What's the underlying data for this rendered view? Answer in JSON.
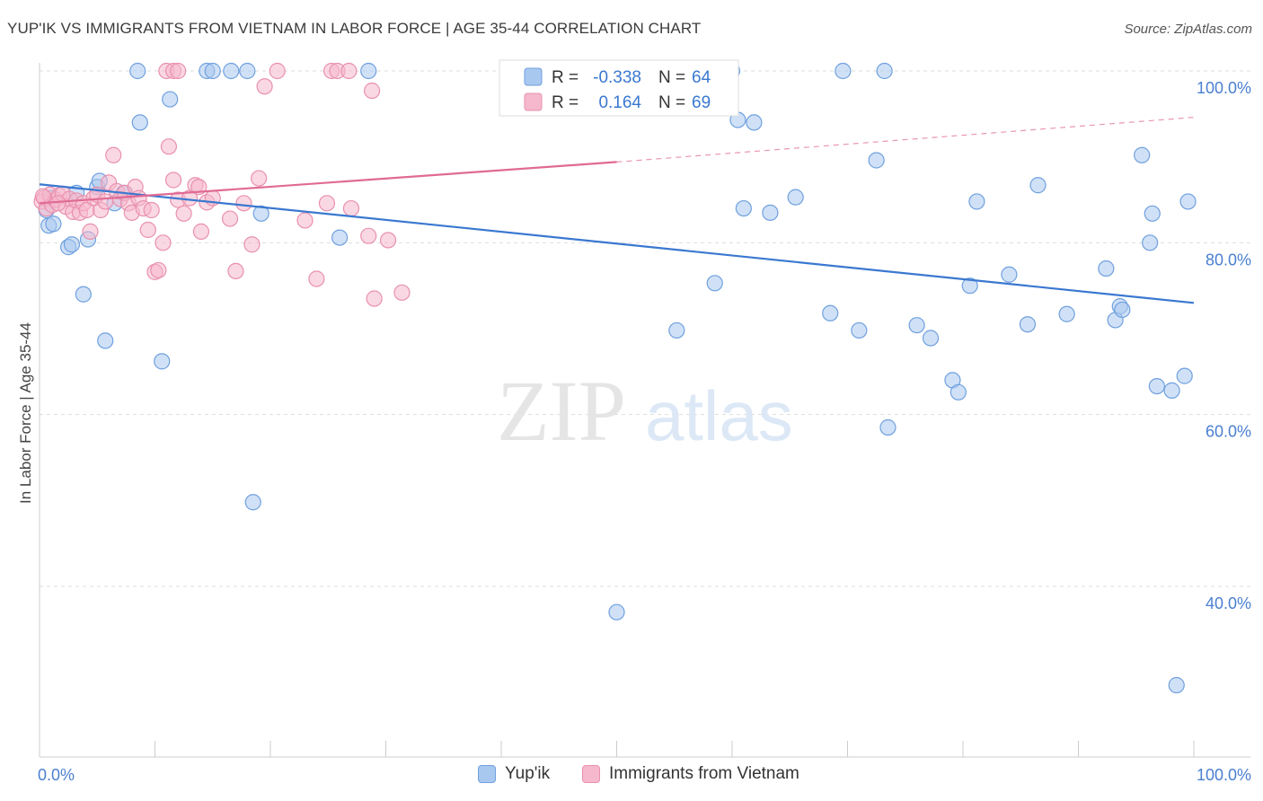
{
  "header": {
    "title": "YUP'IK VS IMMIGRANTS FROM VIETNAM IN LABOR FORCE | AGE 35-44 CORRELATION CHART",
    "source": "Source: ZipAtlas.com"
  },
  "watermark": {
    "zip": "ZIP",
    "atlas": "atlas"
  },
  "colors": {
    "blue_fill": "#a9c8f0",
    "blue_stroke": "#6fa0de",
    "blue_line": "#3a78d0",
    "pink_fill": "#f5b8cc",
    "pink_stroke": "#e990ad",
    "pink_line": "#e06a94",
    "axis_text": "#4a7fd0",
    "grid": "#dddddd"
  },
  "legend": {
    "rows": [
      {
        "r_label": "R =",
        "r_value": "-0.338",
        "n_label": "N =",
        "n_value": "64"
      },
      {
        "r_label": "R =",
        "r_value": "0.164",
        "n_label": "N =",
        "n_value": "69"
      }
    ],
    "bottom": [
      "Yup'ik",
      "Immigrants from Vietnam"
    ]
  },
  "chart_data": {
    "type": "scatter",
    "title": "YUP'IK VS IMMIGRANTS FROM VIETNAM IN LABOR FORCE | AGE 35-44 CORRELATION CHART",
    "xlabel": "",
    "ylabel": "In Labor Force | Age 35-44",
    "xlim": [
      0,
      100
    ],
    "ylim": [
      20,
      102
    ],
    "x_tick_labels": [
      "0.0%",
      "100.0%"
    ],
    "y_ticks": [
      40,
      60,
      80,
      100
    ],
    "y_tick_labels": [
      "40.0%",
      "60.0%",
      "80.0%",
      "100.0%"
    ],
    "grid": true,
    "series": [
      {
        "name": "Yup'ik",
        "trend": {
          "x0": 0,
          "y0": 86.8,
          "x1": 100,
          "y1": 73.0
        },
        "points": [
          [
            0.6,
            83.8
          ],
          [
            0.8,
            82.0
          ],
          [
            1.2,
            82.2
          ],
          [
            2.5,
            79.5
          ],
          [
            2.8,
            79.8
          ],
          [
            3.2,
            85.8
          ],
          [
            3.8,
            74.0
          ],
          [
            4.2,
            80.4
          ],
          [
            5.0,
            86.5
          ],
          [
            5.2,
            87.2
          ],
          [
            5.7,
            68.6
          ],
          [
            6.5,
            84.6
          ],
          [
            7.3,
            85.8
          ],
          [
            8.5,
            100.0
          ],
          [
            8.7,
            94.0
          ],
          [
            10.6,
            66.2
          ],
          [
            11.3,
            96.7
          ],
          [
            14.5,
            100.0
          ],
          [
            15.0,
            100.0
          ],
          [
            16.6,
            100.0
          ],
          [
            18.0,
            100.0
          ],
          [
            18.5,
            49.8
          ],
          [
            19.2,
            83.4
          ],
          [
            26.0,
            80.6
          ],
          [
            28.5,
            100.0
          ],
          [
            53.0,
            100.0
          ],
          [
            50.0,
            37.0
          ],
          [
            55.2,
            69.8
          ],
          [
            58.5,
            75.3
          ],
          [
            60.0,
            100.0
          ],
          [
            60.5,
            94.3
          ],
          [
            61.0,
            84.0
          ],
          [
            61.9,
            94.0
          ],
          [
            63.3,
            83.5
          ],
          [
            65.5,
            85.3
          ],
          [
            68.5,
            71.8
          ],
          [
            69.6,
            100.0
          ],
          [
            71.0,
            69.8
          ],
          [
            72.5,
            89.6
          ],
          [
            73.2,
            100.0
          ],
          [
            73.5,
            58.5
          ],
          [
            76.0,
            70.4
          ],
          [
            77.2,
            68.9
          ],
          [
            79.1,
            64.0
          ],
          [
            79.6,
            62.6
          ],
          [
            80.6,
            75.0
          ],
          [
            81.2,
            84.8
          ],
          [
            84.0,
            76.3
          ],
          [
            85.6,
            70.5
          ],
          [
            86.5,
            86.7
          ],
          [
            89.0,
            71.7
          ],
          [
            92.4,
            77.0
          ],
          [
            93.2,
            71.0
          ],
          [
            93.6,
            72.6
          ],
          [
            93.8,
            72.2
          ],
          [
            95.5,
            90.2
          ],
          [
            96.2,
            80.0
          ],
          [
            96.4,
            83.4
          ],
          [
            96.8,
            63.3
          ],
          [
            98.1,
            62.8
          ],
          [
            98.5,
            28.5
          ],
          [
            99.2,
            64.5
          ],
          [
            99.5,
            84.8
          ],
          [
            1.0,
            85.2
          ]
        ]
      },
      {
        "name": "Immigrants from Vietnam",
        "trend": {
          "x0": 0,
          "y0": 84.6,
          "x1": 50,
          "y1": 89.4,
          "dash_x1": 100,
          "dash_y1": 94.6
        },
        "points": [
          [
            0.2,
            84.8
          ],
          [
            0.4,
            85.2
          ],
          [
            0.6,
            84.0
          ],
          [
            0.9,
            85.6
          ],
          [
            1.1,
            84.4
          ],
          [
            1.4,
            85.0
          ],
          [
            1.7,
            85.5
          ],
          [
            2.0,
            85.7
          ],
          [
            2.3,
            84.2
          ],
          [
            2.6,
            85.1
          ],
          [
            2.9,
            83.6
          ],
          [
            3.2,
            84.9
          ],
          [
            3.5,
            83.5
          ],
          [
            3.8,
            84.6
          ],
          [
            4.1,
            83.8
          ],
          [
            4.4,
            81.3
          ],
          [
            4.7,
            85.2
          ],
          [
            5.0,
            85.6
          ],
          [
            5.3,
            83.8
          ],
          [
            5.7,
            84.8
          ],
          [
            6.0,
            87.0
          ],
          [
            6.4,
            90.2
          ],
          [
            6.7,
            86.0
          ],
          [
            7.0,
            85.1
          ],
          [
            7.4,
            85.8
          ],
          [
            7.7,
            84.6
          ],
          [
            8.0,
            83.5
          ],
          [
            8.3,
            86.5
          ],
          [
            8.6,
            85.2
          ],
          [
            9.0,
            84.0
          ],
          [
            9.4,
            81.5
          ],
          [
            9.7,
            83.8
          ],
          [
            10.0,
            76.6
          ],
          [
            10.3,
            76.8
          ],
          [
            10.7,
            80.0
          ],
          [
            11.2,
            91.2
          ],
          [
            11.6,
            87.3
          ],
          [
            12.0,
            85.0
          ],
          [
            12.5,
            83.4
          ],
          [
            13.0,
            85.2
          ],
          [
            13.5,
            86.7
          ],
          [
            13.8,
            86.5
          ],
          [
            14.0,
            81.3
          ],
          [
            14.5,
            84.7
          ],
          [
            15.0,
            85.2
          ],
          [
            16.5,
            82.8
          ],
          [
            17.0,
            76.7
          ],
          [
            17.7,
            84.6
          ],
          [
            18.4,
            79.8
          ],
          [
            19.0,
            87.5
          ],
          [
            19.5,
            98.2
          ],
          [
            20.6,
            100.0
          ],
          [
            23.0,
            82.6
          ],
          [
            24.0,
            75.8
          ],
          [
            24.9,
            84.6
          ],
          [
            25.3,
            100.0
          ],
          [
            25.8,
            100.0
          ],
          [
            26.8,
            100.0
          ],
          [
            27.0,
            84.0
          ],
          [
            28.5,
            80.8
          ],
          [
            28.8,
            97.7
          ],
          [
            29.0,
            73.5
          ],
          [
            30.2,
            80.3
          ],
          [
            31.4,
            74.2
          ],
          [
            11.0,
            100.0
          ],
          [
            11.6,
            100.0
          ],
          [
            12.0,
            100.0
          ],
          [
            0.3,
            85.4
          ],
          [
            1.6,
            84.6
          ]
        ]
      }
    ]
  }
}
